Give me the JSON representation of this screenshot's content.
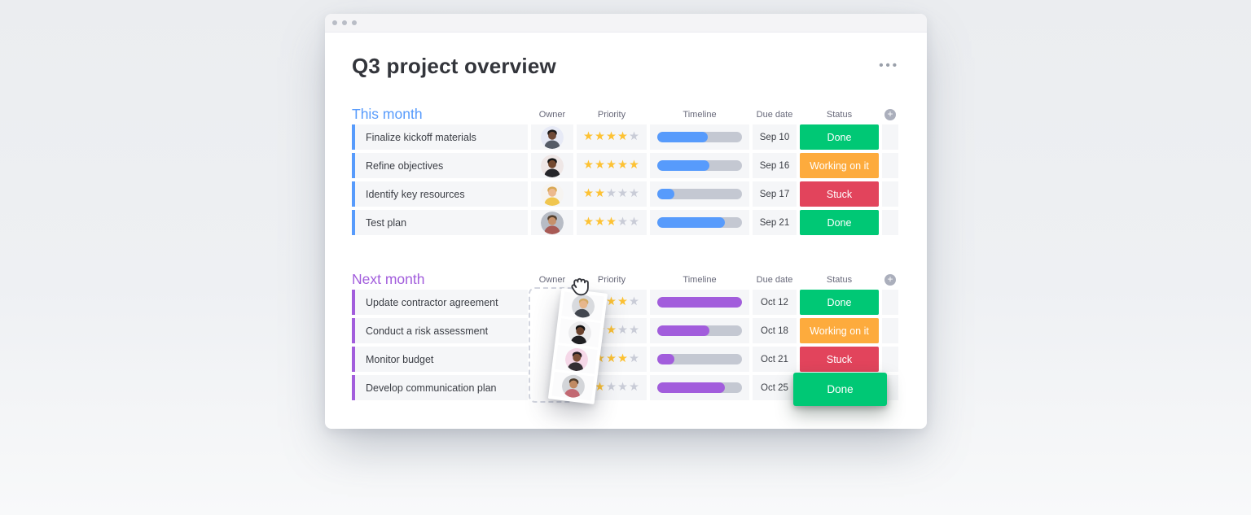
{
  "window": {
    "title": "Q3 project overview",
    "menu_label": "•••"
  },
  "icons": {
    "star": "★",
    "plus": "+",
    "cursor": "grab-hand"
  },
  "columns": [
    "Owner",
    "Priority",
    "Timeline",
    "Due date",
    "Status"
  ],
  "colors": {
    "group_blue": "#579bfc",
    "group_purple": "#a25ddc",
    "done_green": "#00c875",
    "working_orange": "#fdab3d",
    "stuck_red": "#e2445c",
    "star_gold": "#fdc233",
    "star_gray": "#c9ccd7",
    "track_gray": "#c4c8d2",
    "row_bg": "#f5f6f8"
  },
  "groups": [
    {
      "name": "This month",
      "accent": "#579bfc",
      "rows": [
        {
          "task": "Finalize kickoff materials",
          "priority": 4,
          "progress": 60,
          "due": "Sep 10",
          "status": "Done",
          "status_color": "#00c875",
          "avatar": {
            "bg": "#e7eaf6",
            "skin": "#6f4a38",
            "hair": "#1c1a1a",
            "shirt": "#555b66"
          }
        },
        {
          "task": "Refine objectives",
          "priority": 5,
          "progress": 62,
          "due": "Sep 16",
          "status": "Working on it",
          "status_color": "#fdab3d",
          "avatar": {
            "bg": "#efe7e6",
            "skin": "#74492f",
            "hair": "#141414",
            "shirt": "#26262a"
          }
        },
        {
          "task": "Identify key resources",
          "priority": 2,
          "progress": 20,
          "due": "Sep 17",
          "status": "Stuck",
          "status_color": "#e2445c",
          "avatar": {
            "bg": "#f6f4f1",
            "skin": "#ecb98e",
            "hair": "#d9a854",
            "shirt": "#f0c64f"
          }
        },
        {
          "task": "Test plan",
          "priority": 3,
          "progress": 80,
          "due": "Sep 21",
          "status": "Done",
          "status_color": "#00c875",
          "avatar": {
            "bg": "#b7bcc5",
            "skin": "#c6916b",
            "hair": "#54402e",
            "shirt": "#a85a55"
          }
        }
      ]
    },
    {
      "name": "Next month",
      "accent": "#a25ddc",
      "rows": [
        {
          "task": "Update contractor agreement",
          "priority": 4,
          "progress": 100,
          "due": "Oct 12",
          "status": "Done",
          "status_color": "#00c875"
        },
        {
          "task": "Conduct a risk assessment",
          "priority": 3,
          "progress": 62,
          "due": "Oct 18",
          "status": "Working on it",
          "status_color": "#fdab3d"
        },
        {
          "task": "Monitor budget",
          "priority": 4,
          "progress": 20,
          "due": "Oct 21",
          "status": "Stuck",
          "status_color": "#e2445c"
        },
        {
          "task": "Develop communication plan",
          "priority": 2,
          "progress": 80,
          "due": "Oct 25",
          "status": "Done",
          "status_color": "#00c875",
          "elevated": true
        }
      ]
    }
  ],
  "drag": {
    "cursor_icon": "grab-hand",
    "avatars": [
      {
        "bg": "#d8dade",
        "skin": "#e6b68c",
        "hair": "#d3a964",
        "shirt": "#41464e"
      },
      {
        "bg": "#ececee",
        "skin": "#6b432e",
        "hair": "#121212",
        "shirt": "#1f1f22"
      },
      {
        "bg": "#f5d8e8",
        "skin": "#7e5138",
        "hair": "#241d20",
        "shirt": "#332e33"
      },
      {
        "bg": "#d3d5d9",
        "skin": "#c08a62",
        "hair": "#4e3b2a",
        "shirt": "#c26872"
      }
    ]
  }
}
